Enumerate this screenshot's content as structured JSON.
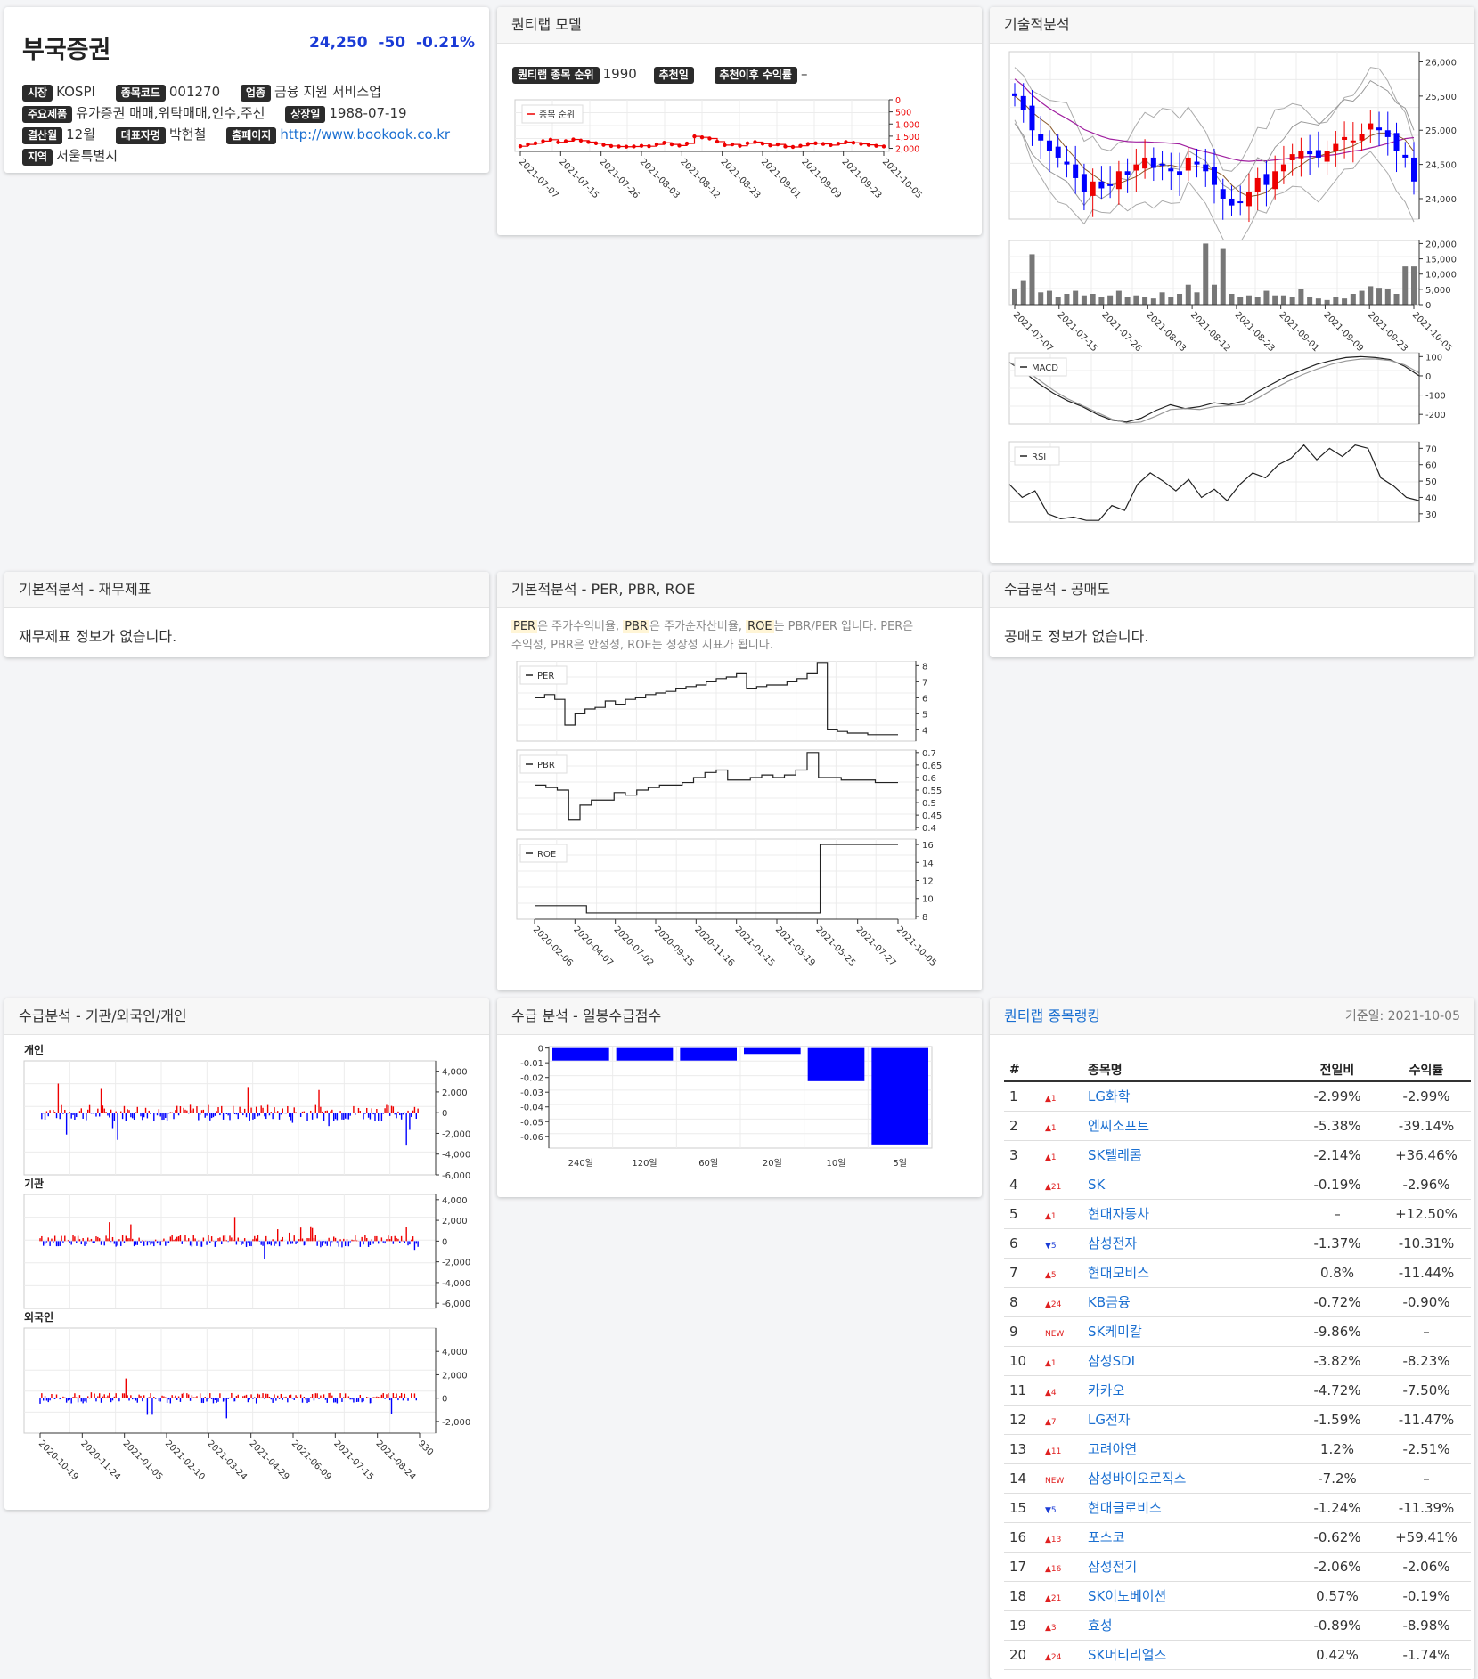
{
  "stock": {
    "name": "부국증권",
    "price": "24,250",
    "change": "-50",
    "change_pct": "-0.21%",
    "market_label": "시장",
    "market": "KOSPI",
    "code_label": "종목코드",
    "code": "001270",
    "industry_label": "업종",
    "industry": "금융 지원 서비스업",
    "products_label": "주요제품",
    "products": "유가증권 매매,위탁매매,인수,주선",
    "listed_label": "상장일",
    "listed": "1988-07-19",
    "fiscal_label": "결산월",
    "fiscal": "12월",
    "ceo_label": "대표자명",
    "ceo": "박현철",
    "homepage_label": "홈페이지",
    "homepage": "http://www.bookook.co.kr",
    "region_label": "지역",
    "region": "서울특별시"
  },
  "panels": {
    "quant_model": "퀀티랩 모델",
    "technical": "기술적분석",
    "fundamental": "기본적분석 - 재무제표",
    "per_pbr_roe": "기본적분석 - PER, PBR, ROE",
    "short_selling": "수급분석 - 공매도",
    "investors": "수급분석 - 기관/외국인/개인",
    "daily_score": "수급 분석 - 일봉수급점수",
    "ranking": "퀀티랩 종목랭킹"
  },
  "quant_model": {
    "rank_label": "퀀티랩 종목 순위",
    "rank_value": "1990",
    "rec_date_label": "추천일",
    "rec_date_value": "",
    "rec_return_label": "추천이후 수익률",
    "rec_return_value": "–",
    "legend": "종목 순위"
  },
  "fundamental_empty": "재무제표 정보가 없습니다.",
  "short_empty": "공매도 정보가 없습니다.",
  "per_note": {
    "per": "PER",
    "t1": "은 주가수익비율, ",
    "pbr": "PBR",
    "t2": "은 주가순자산비율, ",
    "roe": "ROE",
    "t3": "는 PBR/PER 입니다. PER은",
    "line2": "수익성, PBR은 안정성, ROE는 성장성 지표가 됩니다."
  },
  "investors": {
    "individual": "개인",
    "institution": "기관",
    "foreign": "외국인"
  },
  "ranking": {
    "base_date": "기준일: 2021-10-05",
    "headers": [
      "#",
      "",
      "종목명",
      "전일비",
      "수익률"
    ],
    "rows": [
      {
        "no": "1",
        "mv": "▲1",
        "name": "LG화학",
        "day": "-2.99%",
        "ret": "-2.99%"
      },
      {
        "no": "2",
        "mv": "▲1",
        "name": "엔씨소프트",
        "day": "-5.38%",
        "ret": "-39.14%"
      },
      {
        "no": "3",
        "mv": "▲1",
        "name": "SK텔레콤",
        "day": "-2.14%",
        "ret": "+36.46%"
      },
      {
        "no": "4",
        "mv": "▲21",
        "name": "SK",
        "day": "-0.19%",
        "ret": "-2.96%"
      },
      {
        "no": "5",
        "mv": "▲1",
        "name": "현대자동차",
        "day": "–",
        "ret": "+12.50%"
      },
      {
        "no": "6",
        "mv": "▼5",
        "name": "삼성전자",
        "day": "-1.37%",
        "ret": "-10.31%"
      },
      {
        "no": "7",
        "mv": "▲5",
        "name": "현대모비스",
        "day": "0.8%",
        "ret": "-11.44%"
      },
      {
        "no": "8",
        "mv": "▲24",
        "name": "KB금융",
        "day": "-0.72%",
        "ret": "-0.90%"
      },
      {
        "no": "9",
        "mv": "NEW",
        "name": "SK케미칼",
        "day": "-9.86%",
        "ret": "–"
      },
      {
        "no": "10",
        "mv": "▲1",
        "name": "삼성SDI",
        "day": "-3.82%",
        "ret": "-8.23%"
      },
      {
        "no": "11",
        "mv": "▲4",
        "name": "카카오",
        "day": "-4.72%",
        "ret": "-7.50%"
      },
      {
        "no": "12",
        "mv": "▲7",
        "name": "LG전자",
        "day": "-1.59%",
        "ret": "-11.47%"
      },
      {
        "no": "13",
        "mv": "▲11",
        "name": "고려아연",
        "day": "1.2%",
        "ret": "-2.51%"
      },
      {
        "no": "14",
        "mv": "NEW",
        "name": "삼성바이오로직스",
        "day": "-7.2%",
        "ret": "–"
      },
      {
        "no": "15",
        "mv": "▼5",
        "name": "현대글로비스",
        "day": "-1.24%",
        "ret": "-11.39%"
      },
      {
        "no": "16",
        "mv": "▲13",
        "name": "포스코",
        "day": "-0.62%",
        "ret": "+59.41%"
      },
      {
        "no": "17",
        "mv": "▲16",
        "name": "삼성전기",
        "day": "-2.06%",
        "ret": "-2.06%"
      },
      {
        "no": "18",
        "mv": "▲21",
        "name": "SK이노베이션",
        "day": "0.57%",
        "ret": "-0.19%"
      },
      {
        "no": "19",
        "mv": "▲3",
        "name": "효성",
        "day": "-0.89%",
        "ret": "-8.98%"
      },
      {
        "no": "20",
        "mv": "▲24",
        "name": "SK머티리얼즈",
        "day": "0.42%",
        "ret": "-1.74%"
      }
    ]
  },
  "chart_data": [
    {
      "type": "line",
      "id": "quant-rank",
      "legend": "종목 순위",
      "x_ticks": [
        "2021-07-07",
        "2021-07-15",
        "2021-07-26",
        "2021-08-03",
        "2021-08-12",
        "2021-08-23",
        "2021-09-01",
        "2021-09-09",
        "2021-09-23",
        "2021-10-05"
      ],
      "y_ticks": [
        "0",
        "500",
        "1,000",
        "1,500",
        "2,000"
      ],
      "ylim": [
        0,
        2200
      ],
      "y_inverted": true,
      "values": [
        1980,
        1900,
        1850,
        1760,
        1700,
        1810,
        1760,
        1690,
        1740,
        1800,
        1850,
        1920,
        1970,
        1990,
        2000,
        1990,
        1960,
        1980,
        1900,
        1830,
        1900,
        1950,
        1860,
        1560,
        1600,
        1650,
        1780,
        1930,
        1900,
        1960,
        1850,
        1800,
        1870,
        1940,
        1900,
        1990,
        2010,
        1960,
        1880,
        1850,
        1880,
        1930,
        1870,
        1800,
        1830,
        1880,
        1920,
        1960,
        1990
      ]
    },
    {
      "type": "candlestick",
      "id": "technical-price",
      "x_ticks": [
        "2021-07-07",
        "2021-07-15",
        "2021-07-26",
        "2021-08-03",
        "2021-08-12",
        "2021-08-23",
        "2021-09-01",
        "2021-09-09",
        "2021-09-23",
        "2021-10-05"
      ],
      "y_ticks": [
        "24,000",
        "24,500",
        "25,000",
        "25,500",
        "26,000"
      ],
      "ylim": [
        23700,
        26150
      ],
      "close": [
        25500,
        25300,
        25000,
        24850,
        24700,
        24600,
        24500,
        24300,
        24100,
        24250,
        24150,
        24200,
        24400,
        24350,
        24500,
        24600,
        24450,
        24500,
        24400,
        24350,
        24600,
        24500,
        24400,
        24200,
        24000,
        23900,
        23950,
        24100,
        24300,
        24200,
        24400,
        24500,
        24650,
        24700,
        24650,
        24600,
        24700,
        24800,
        24900,
        24850,
        24950,
        25100,
        25000,
        24900,
        24700,
        24600,
        24250
      ],
      "volume": [
        5000,
        8000,
        16500,
        4000,
        4500,
        2500,
        3500,
        4500,
        3000,
        3500,
        2500,
        3000,
        4500,
        2500,
        3000,
        2500,
        2000,
        4000,
        2500,
        3500,
        6500,
        4000,
        20000,
        6500,
        18500,
        3500,
        2500,
        3000,
        2500,
        4500,
        3000,
        3000,
        2500,
        5000,
        2500,
        2000,
        1500,
        2500,
        2000,
        3500,
        4500,
        6000,
        5500,
        5000,
        3500,
        12500,
        12500
      ],
      "volume_ticks": [
        "0",
        "5,000",
        "10,000",
        "15,000",
        "20,000"
      ]
    },
    {
      "type": "line",
      "id": "macd",
      "legend": "MACD",
      "y_ticks": [
        "100",
        "0",
        "-100",
        "-200"
      ],
      "ylim": [
        -250,
        120
      ],
      "values": [
        70,
        20,
        -40,
        -90,
        -130,
        -160,
        -200,
        -230,
        -240,
        -220,
        -180,
        -150,
        -170,
        -160,
        -140,
        -150,
        -130,
        -80,
        -40,
        0,
        30,
        60,
        80,
        95,
        100,
        95,
        85,
        50,
        0
      ]
    },
    {
      "type": "line",
      "id": "rsi",
      "legend": "RSI",
      "y_ticks": [
        "70",
        "60",
        "50",
        "40",
        "30"
      ],
      "ylim": [
        25,
        74
      ],
      "values": [
        48,
        40,
        44,
        30,
        27,
        28,
        26,
        26,
        35,
        32,
        48,
        55,
        50,
        44,
        51,
        40,
        45,
        38,
        48,
        55,
        52,
        60,
        64,
        72,
        63,
        70,
        65,
        72,
        70,
        52,
        47,
        40,
        38
      ]
    },
    {
      "type": "line",
      "id": "per",
      "legend": "PER",
      "x_ticks": [
        "2020-02-06",
        "2020-04-07",
        "2020-07-02",
        "2020-09-15",
        "2020-11-16",
        "2021-01-15",
        "2021-03-19",
        "2021-05-25",
        "2021-07-27",
        "2021-10-05"
      ],
      "y_ticks": [
        "8",
        "7",
        "6",
        "5",
        "4"
      ],
      "ylim": [
        3.3,
        8.3
      ],
      "values": [
        6.0,
        6.2,
        5.9,
        4.3,
        5.0,
        5.3,
        5.4,
        5.8,
        5.6,
        5.9,
        6.0,
        6.2,
        6.3,
        6.4,
        6.6,
        6.7,
        6.8,
        7.0,
        7.2,
        7.3,
        7.5,
        6.6,
        6.7,
        6.8,
        6.8,
        7.0,
        7.2,
        7.5,
        8.2,
        4.0,
        3.9,
        3.8,
        3.8,
        3.7,
        3.7,
        3.7,
        3.7
      ]
    },
    {
      "type": "line",
      "id": "pbr",
      "legend": "PBR",
      "y_ticks": [
        "0.7",
        "0.65",
        "0.6",
        "0.55",
        "0.5",
        "0.45",
        "0.4"
      ],
      "ylim": [
        0.39,
        0.71
      ],
      "values": [
        0.57,
        0.56,
        0.55,
        0.43,
        0.49,
        0.51,
        0.51,
        0.54,
        0.53,
        0.55,
        0.56,
        0.57,
        0.57,
        0.58,
        0.6,
        0.62,
        0.63,
        0.59,
        0.59,
        0.6,
        0.61,
        0.6,
        0.61,
        0.63,
        0.7,
        0.6,
        0.6,
        0.59,
        0.59,
        0.59,
        0.58,
        0.58,
        0.58
      ]
    },
    {
      "type": "line",
      "id": "roe",
      "legend": "ROE",
      "y_ticks": [
        "16",
        "14",
        "12",
        "10",
        "8"
      ],
      "ylim": [
        7.7,
        16.6
      ],
      "values": [
        9.2,
        9.2,
        9.2,
        9.2,
        8.4,
        8.4,
        8.4,
        8.4,
        8.4,
        8.4,
        8.4,
        8.4,
        8.4,
        8.4,
        8.4,
        8.4,
        8.4,
        8.4,
        8.4,
        8.4,
        8.4,
        8.4,
        16.0,
        16.0,
        16.0,
        16.0,
        16.0,
        16.0,
        16.0
      ]
    },
    {
      "type": "bar",
      "id": "investor-individual",
      "title": "개인",
      "y_ticks": [
        "4,000",
        "2,000",
        "0",
        "-2,000",
        "-4,000",
        "-6,000"
      ],
      "ylim": [
        -6000,
        5000
      ]
    },
    {
      "type": "bar",
      "id": "investor-institution",
      "title": "기관",
      "y_ticks": [
        "4,000",
        "2,000",
        "0",
        "-2,000",
        "-4,000",
        "-6,000"
      ],
      "ylim": [
        -6500,
        4500
      ]
    },
    {
      "type": "bar",
      "id": "investor-foreign",
      "title": "외국인",
      "y_ticks": [
        "4,000",
        "2,000",
        "0",
        "-2,000"
      ],
      "ylim": [
        -3000,
        6000
      ],
      "x_ticks": [
        "2020-10-19",
        "2020-11-24",
        "2021-01-05",
        "2021-02-10",
        "2021-03-24",
        "2021-04-29",
        "2021-06-09",
        "2021-07-15",
        "2021-08-24",
        "930"
      ]
    },
    {
      "type": "bar",
      "id": "daily-score",
      "categories": [
        "240일",
        "120일",
        "60일",
        "20일",
        "10일",
        "5일"
      ],
      "values": [
        -0.0085,
        -0.0085,
        -0.0085,
        -0.004,
        -0.0225,
        -0.0655
      ],
      "y_ticks": [
        "0",
        "-0.01",
        "-0.02",
        "-0.03",
        "-0.04",
        "-0.05",
        "-0.06"
      ],
      "ylim": [
        -0.068,
        0.001
      ],
      "color": "#0000ff"
    }
  ]
}
